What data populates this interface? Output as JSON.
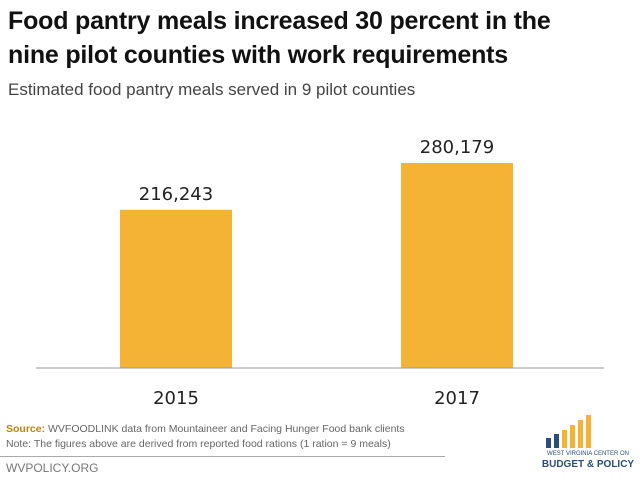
{
  "chart_data": {
    "type": "bar",
    "title": "Food pantry meals increased 30 percent in the nine pilot counties with work requirements",
    "title_lines": [
      "Food pantry meals increased 30 percent in the",
      "nine pilot counties with work requirements"
    ],
    "subtitle": "Estimated food pantry meals served in 9 pilot counties",
    "categories": [
      "2015",
      "2017"
    ],
    "values": [
      216243,
      280179
    ],
    "data_labels": [
      "216,243",
      "280,179"
    ],
    "xlabel": "",
    "ylabel": "",
    "ylim": [
      0,
      300000
    ],
    "grid": false,
    "bar_color": "#f5b335"
  },
  "footer": {
    "source_label": "Source:",
    "source_text": " WVFOODLINK data from Mountaineer and Facing Hunger Food bank clients",
    "note": "Note: The figures above are derived from reported food rations (1 ration = 9 meals)",
    "site": "WVPOLICY.ORG"
  },
  "logo": {
    "line1": "WEST VIRGINIA CENTER ON",
    "line2": "BUDGET & POLICY",
    "blue": "#2c4d7a",
    "gold": "#f5b335"
  }
}
